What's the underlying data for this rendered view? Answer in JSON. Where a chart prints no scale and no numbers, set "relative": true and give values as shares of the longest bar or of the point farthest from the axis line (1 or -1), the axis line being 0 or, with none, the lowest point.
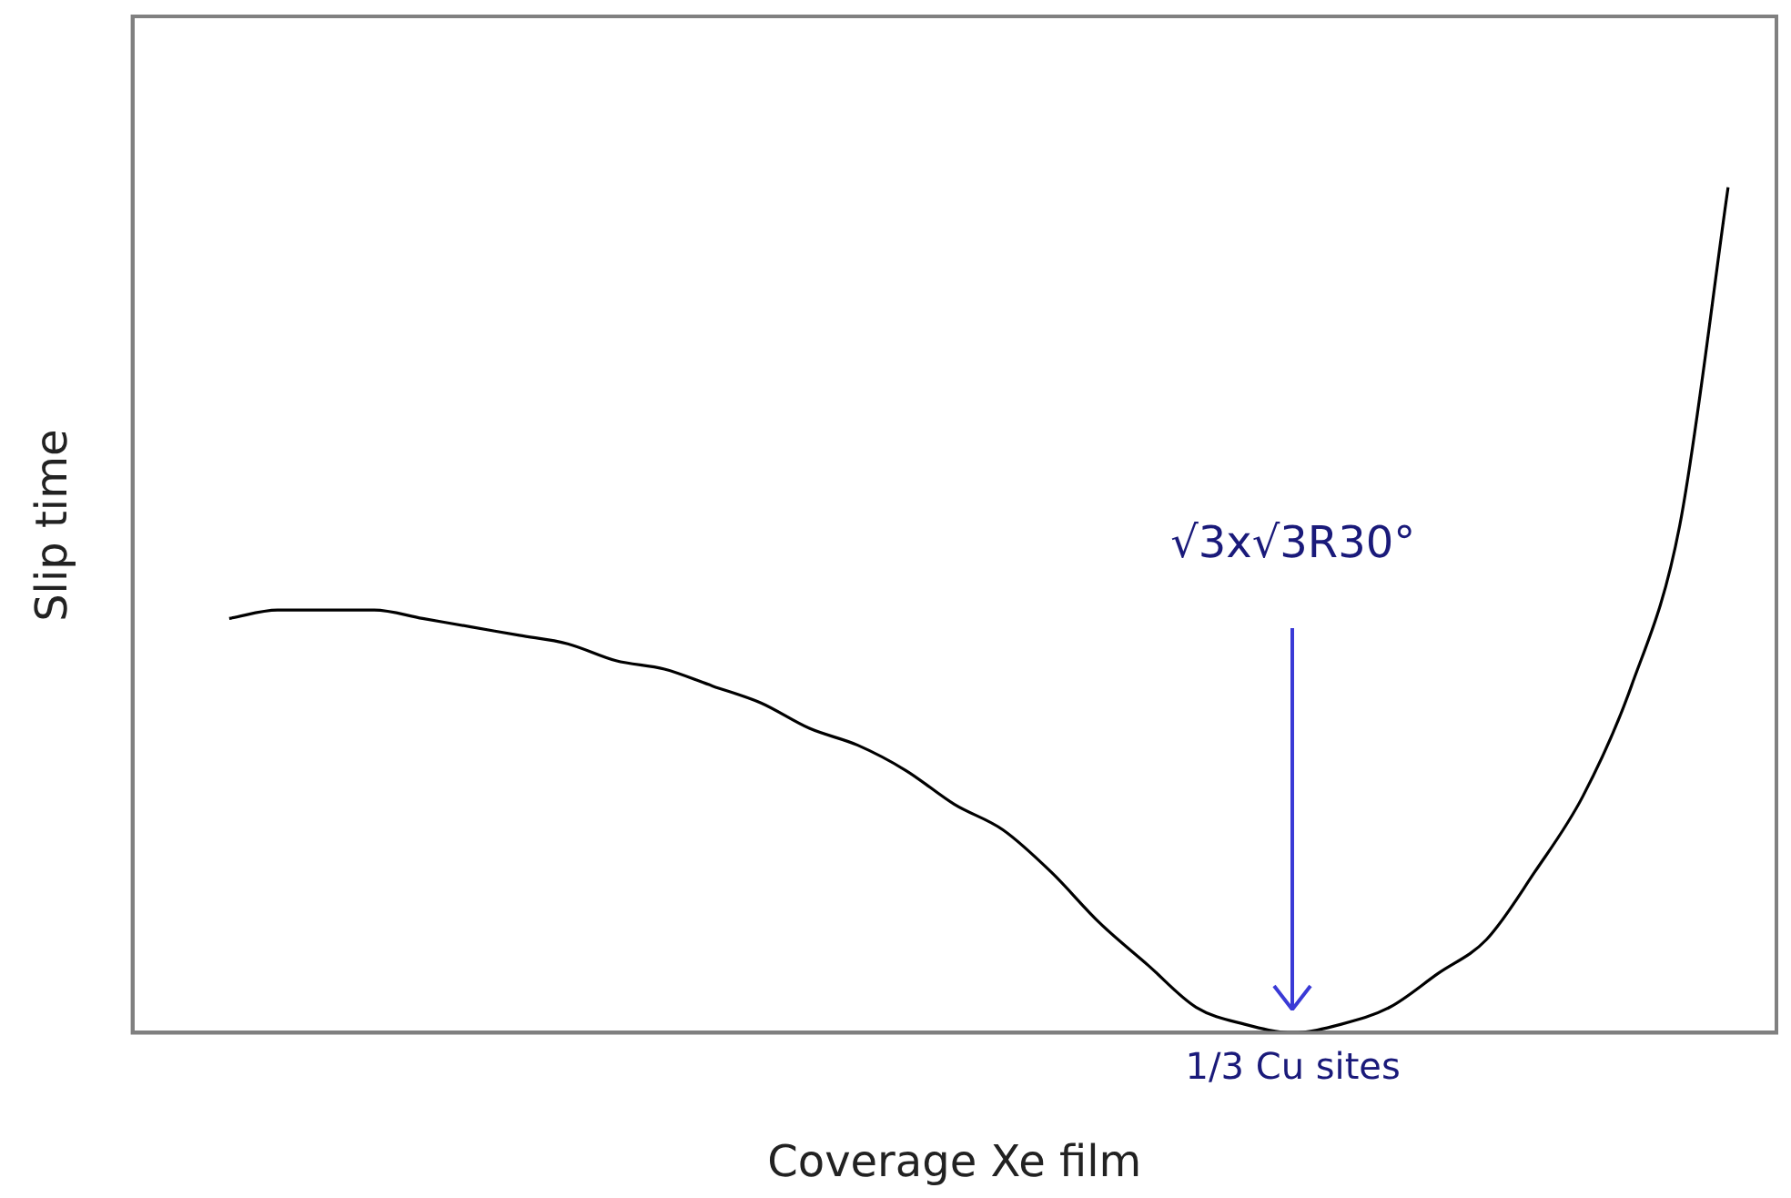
{
  "chart_data": {
    "type": "line",
    "relative": true,
    "xlabel": "Coverage Xe film",
    "ylabel": "Slip time",
    "categories": [
      null,
      null,
      null,
      null,
      null,
      null,
      null,
      null,
      null,
      null,
      null,
      null,
      null,
      null,
      null,
      null,
      null,
      null,
      null,
      null,
      null,
      null,
      null,
      null,
      null,
      null,
      null,
      null,
      null,
      null,
      null,
      null,
      null,
      null,
      null
    ],
    "series": [
      {
        "color": "#000000",
        "values": [
          null,
          null,
          0.49,
          0.5,
          0.5,
          0.5,
          0.49,
          0.48,
          0.47,
          0.46,
          0.44,
          0.43,
          0.41,
          0.39,
          0.36,
          0.34,
          0.31,
          0.27,
          0.24,
          0.19,
          0.13,
          0.08,
          0.03,
          0.01,
          0,
          0.01,
          0.03,
          0.07,
          0.11,
          0.19,
          0.28,
          0.41,
          0.6,
          1.0,
          null
        ]
      }
    ],
    "annotations": [
      "√3x√3R30°",
      {
        "text": "1/3 Cu sites",
        "y": 0
      }
    ],
    "grid": false,
    "legend": false,
    "marker": "none",
    "line_style": "solid"
  }
}
